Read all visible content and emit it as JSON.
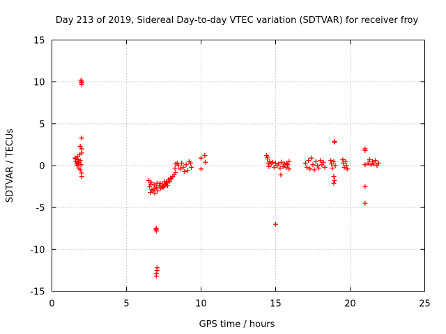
{
  "chart_data": {
    "type": "scatter",
    "title": "Day 213 of 2019, Sidereal Day-to-day VTEC variation (SDTVAR) for receiver froy",
    "xlabel": "GPS time / hours",
    "ylabel": "SDTVAR / TECUs",
    "xlim": [
      0,
      25
    ],
    "ylim": [
      -15,
      15
    ],
    "xticks": [
      "0",
      "5",
      "10",
      "15",
      "20",
      "25"
    ],
    "yticks": [
      "-15",
      "-10",
      "-5",
      "0",
      "5",
      "10",
      "15"
    ],
    "grid": true,
    "marker": "+",
    "color": "#ff0000",
    "series": [
      {
        "name": "SDTVAR",
        "points": [
          [
            1.95,
            10.2
          ],
          [
            1.97,
            9.9
          ],
          [
            2.0,
            9.7
          ],
          [
            2.0,
            10.0
          ],
          [
            2.0,
            3.3
          ],
          [
            1.9,
            2.3
          ],
          [
            2.0,
            2.0
          ],
          [
            1.55,
            0.9
          ],
          [
            1.6,
            0.5
          ],
          [
            1.65,
            0.2
          ],
          [
            1.7,
            1.1
          ],
          [
            1.7,
            0.0
          ],
          [
            1.75,
            0.7
          ],
          [
            1.8,
            -0.3
          ],
          [
            1.8,
            0.4
          ],
          [
            1.85,
            1.3
          ],
          [
            1.9,
            0.6
          ],
          [
            1.9,
            -0.5
          ],
          [
            1.95,
            0.1
          ],
          [
            2.0,
            1.5
          ],
          [
            2.0,
            -0.9
          ],
          [
            2.0,
            -1.3
          ],
          [
            1.6,
            0.8
          ],
          [
            1.75,
            0.3
          ],
          [
            6.5,
            -1.8
          ],
          [
            6.55,
            -2.5
          ],
          [
            6.6,
            -3.2
          ],
          [
            6.65,
            -2.0
          ],
          [
            6.7,
            -2.9
          ],
          [
            6.8,
            -3.0
          ],
          [
            6.85,
            -2.3
          ],
          [
            6.9,
            -3.3
          ],
          [
            7.0,
            -2.6
          ],
          [
            7.05,
            -2.1
          ],
          [
            7.1,
            -3.0
          ],
          [
            7.2,
            -2.4
          ],
          [
            7.3,
            -2.7
          ],
          [
            7.4,
            -2.2
          ],
          [
            7.5,
            -2.5
          ],
          [
            7.55,
            -1.9
          ],
          [
            7.6,
            -2.3
          ],
          [
            7.7,
            -2.0
          ],
          [
            7.75,
            -2.4
          ],
          [
            7.8,
            -1.7
          ],
          [
            7.9,
            -1.9
          ],
          [
            7.95,
            -1.5
          ],
          [
            8.0,
            -1.6
          ],
          [
            8.1,
            -1.3
          ],
          [
            8.2,
            -1.1
          ],
          [
            8.25,
            -0.3
          ],
          [
            8.3,
            0.2
          ],
          [
            8.3,
            -0.8
          ],
          [
            8.4,
            0.3
          ],
          [
            8.5,
            0.0
          ],
          [
            8.6,
            -0.4
          ],
          [
            8.7,
            0.3
          ],
          [
            8.8,
            -0.2
          ],
          [
            8.9,
            -0.7
          ],
          [
            9.0,
            0.1
          ],
          [
            9.1,
            -0.6
          ],
          [
            9.2,
            0.5
          ],
          [
            9.3,
            0.3
          ],
          [
            9.35,
            -0.2
          ],
          [
            6.6,
            -2.2
          ],
          [
            6.9,
            -2.7
          ],
          [
            7.25,
            -2.1
          ],
          [
            7.45,
            -2.6
          ],
          [
            7.65,
            -2.1
          ],
          [
            7.0,
            -7.5
          ],
          [
            7.0,
            -7.8
          ],
          [
            6.98,
            -7.6
          ],
          [
            7.05,
            -12.2
          ],
          [
            7.05,
            -12.5
          ],
          [
            7.0,
            -12.9
          ],
          [
            7.0,
            -13.2
          ],
          [
            10.0,
            0.9
          ],
          [
            10.0,
            -0.4
          ],
          [
            10.25,
            1.2
          ],
          [
            10.3,
            0.4
          ],
          [
            14.4,
            1.2
          ],
          [
            14.45,
            0.8
          ],
          [
            14.5,
            0.3
          ],
          [
            14.55,
            -0.1
          ],
          [
            14.6,
            0.5
          ],
          [
            14.7,
            0.2
          ],
          [
            14.8,
            0.4
          ],
          [
            14.9,
            -0.2
          ],
          [
            15.0,
            0.3
          ],
          [
            15.1,
            0.0
          ],
          [
            15.2,
            0.2
          ],
          [
            15.3,
            -0.3
          ],
          [
            15.4,
            0.4
          ],
          [
            15.5,
            -0.1
          ],
          [
            15.6,
            0.2
          ],
          [
            15.7,
            -0.2
          ],
          [
            15.8,
            0.1
          ],
          [
            15.9,
            -0.4
          ],
          [
            15.9,
            0.5
          ],
          [
            15.35,
            -1.1
          ],
          [
            14.45,
            1.0
          ],
          [
            15.75,
            0.3
          ],
          [
            15.0,
            -7.0
          ],
          [
            17.0,
            0.3
          ],
          [
            17.1,
            -0.2
          ],
          [
            17.2,
            0.6
          ],
          [
            17.3,
            -0.4
          ],
          [
            17.4,
            0.9
          ],
          [
            17.5,
            0.1
          ],
          [
            17.6,
            -0.5
          ],
          [
            17.7,
            0.5
          ],
          [
            17.8,
            0.0
          ],
          [
            17.9,
            -0.3
          ],
          [
            18.0,
            0.6
          ],
          [
            18.1,
            0.1
          ],
          [
            18.2,
            0.4
          ],
          [
            18.3,
            -0.2
          ],
          [
            18.7,
            0.6
          ],
          [
            18.75,
            0.2
          ],
          [
            18.8,
            -0.3
          ],
          [
            18.9,
            0.5
          ],
          [
            19.0,
            0.0
          ],
          [
            18.9,
            -1.3
          ],
          [
            18.95,
            -1.8
          ],
          [
            18.9,
            -2.1
          ],
          [
            18.95,
            2.9
          ],
          [
            18.95,
            2.8
          ],
          [
            19.5,
            0.7
          ],
          [
            19.55,
            0.3
          ],
          [
            19.6,
            -0.2
          ],
          [
            19.7,
            0.5
          ],
          [
            19.75,
            0.0
          ],
          [
            19.8,
            -0.4
          ],
          [
            21.0,
            2.0
          ],
          [
            21.0,
            1.8
          ],
          [
            21.0,
            0.1
          ],
          [
            21.0,
            -2.5
          ],
          [
            21.0,
            -4.5
          ],
          [
            21.2,
            0.3
          ],
          [
            21.3,
            0.7
          ],
          [
            21.4,
            0.1
          ],
          [
            21.5,
            0.5
          ],
          [
            21.6,
            0.2
          ],
          [
            21.7,
            0.6
          ],
          [
            21.8,
            0.0
          ],
          [
            21.9,
            0.3
          ]
        ]
      }
    ]
  }
}
